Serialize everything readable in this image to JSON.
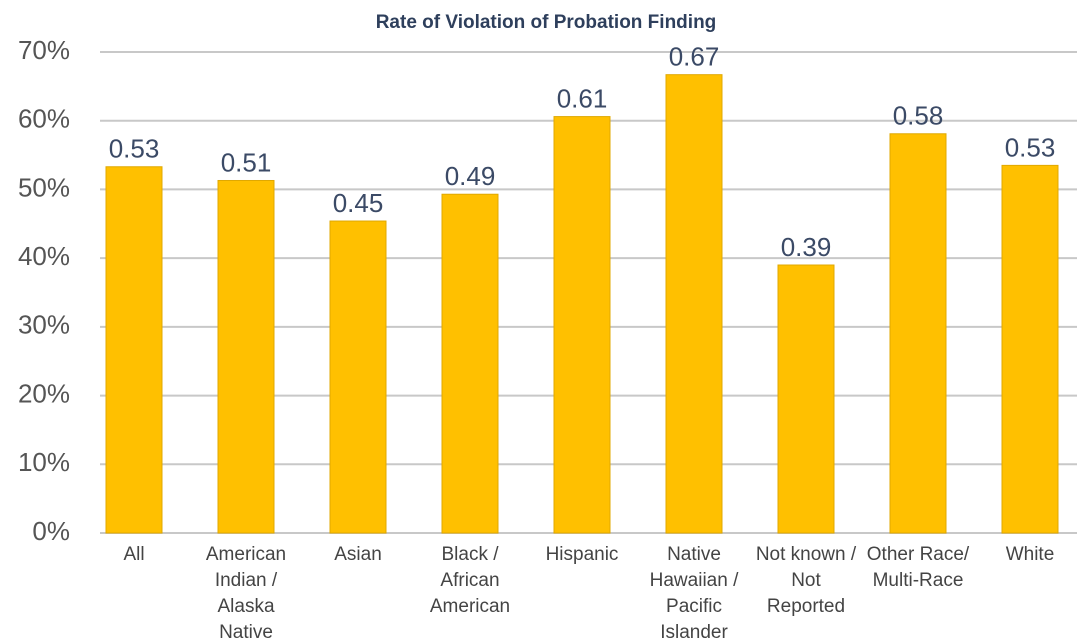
{
  "chart_data": {
    "type": "bar",
    "title": "Rate of Violation of Probation Finding",
    "categories": [
      "All",
      "American Indian / Alaska Native",
      "Asian",
      "Black / African American",
      "Hispanic",
      "Native Hawaiian / Pacific Islander",
      "Not known / Not Reported",
      "Other Race/ Multi-Race",
      "White"
    ],
    "values": [
      53.3,
      51.3,
      45.4,
      49.3,
      60.6,
      66.7,
      39.0,
      58.1,
      53.5
    ],
    "value_labels": [
      "0.53",
      "0.51",
      "0.45",
      "0.49",
      "0.61",
      "0.67",
      "0.39",
      "0.58",
      "0.53"
    ],
    "color": "#ffc000",
    "ylim": [
      0,
      70
    ],
    "yticks": [
      {
        "value": 0,
        "label": "0%"
      },
      {
        "value": 10,
        "label": "10%"
      },
      {
        "value": 20,
        "label": "20%"
      },
      {
        "value": 30,
        "label": "30%"
      },
      {
        "value": 40,
        "label": "40%"
      },
      {
        "value": 50,
        "label": "50%"
      },
      {
        "value": 60,
        "label": "60%"
      },
      {
        "value": 70,
        "label": "70%"
      }
    ],
    "grid": true
  }
}
